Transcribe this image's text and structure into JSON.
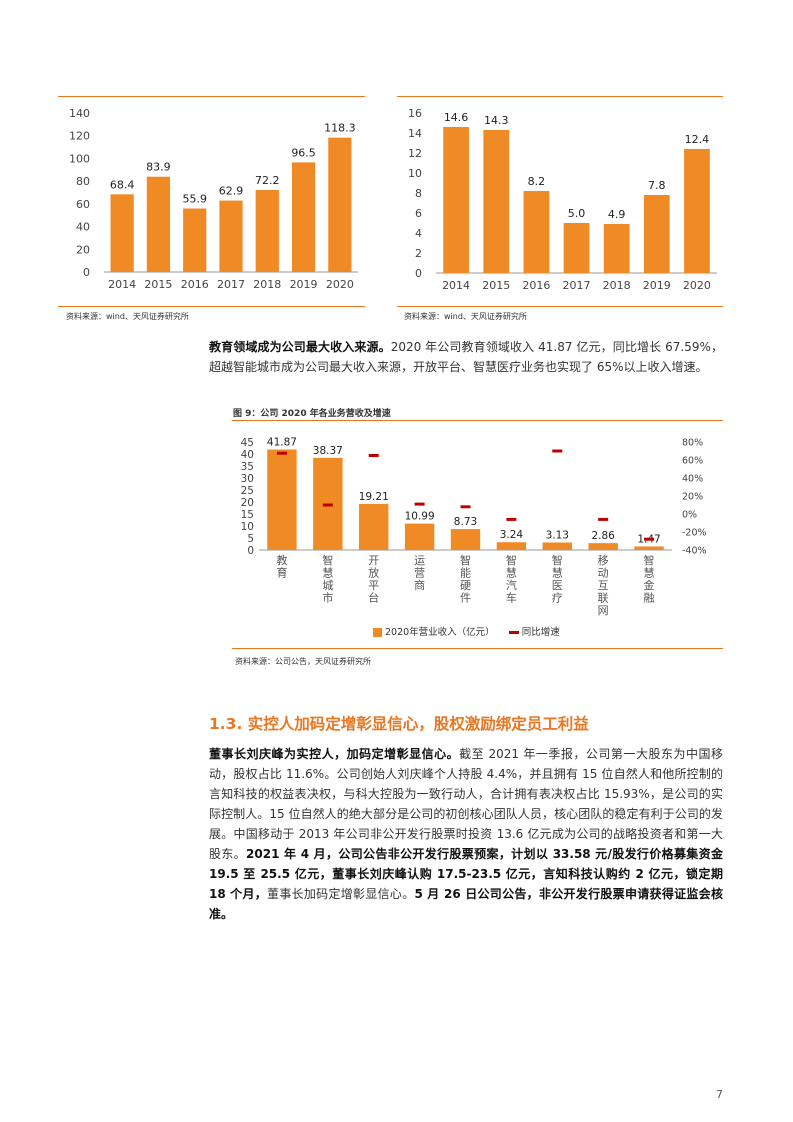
{
  "charts": {
    "left": {
      "source": "资料来源：wind、天风证券研究所"
    },
    "right": {
      "source": "资料来源：wind、天风证券研究所"
    },
    "fig9": {
      "title": "图 9：公司 2020 年各业务营收及增速",
      "legend_bar": "2020年营业收入（亿元）",
      "legend_line": "同比增速",
      "source": "资料来源：公司公告，天风证券研究所"
    }
  },
  "chart_data": [
    {
      "type": "bar",
      "categories": [
        "2014",
        "2015",
        "2016",
        "2017",
        "2018",
        "2019",
        "2020"
      ],
      "values": [
        68.4,
        83.9,
        55.9,
        62.9,
        72.2,
        96.5,
        118.3
      ],
      "value_labels": [
        "68.4",
        "83.9",
        "55.9",
        "62.9",
        "72.2",
        "96.5",
        "118.3"
      ],
      "yticks": [
        "0",
        "20",
        "40",
        "60",
        "80",
        "100",
        "120",
        "140"
      ],
      "ylim": [
        0,
        140
      ],
      "color": "#F08A24"
    },
    {
      "type": "bar",
      "categories": [
        "2014",
        "2015",
        "2016",
        "2017",
        "2018",
        "2019",
        "2020"
      ],
      "values": [
        14.6,
        14.3,
        8.2,
        5.0,
        4.9,
        7.8,
        12.4
      ],
      "value_labels": [
        "14.6",
        "14.3",
        "8.2",
        "5.0",
        "4.9",
        "7.8",
        "12.4"
      ],
      "yticks": [
        "0",
        "2",
        "4",
        "6",
        "8",
        "10",
        "12",
        "14",
        "16"
      ],
      "ylim": [
        0,
        16
      ],
      "color": "#F08A24"
    },
    {
      "type": "bar",
      "categories": [
        "教育",
        "智慧城市",
        "开放平台",
        "运营商",
        "智能硬件",
        "智慧汽车",
        "智慧医疗",
        "移动互联网",
        "智慧金融"
      ],
      "series": [
        {
          "name": "2020年营业收入（亿元）",
          "values": [
            41.87,
            38.37,
            19.21,
            10.99,
            8.73,
            3.24,
            3.13,
            2.86,
            1.47
          ],
          "value_labels": [
            "41.87",
            "38.37",
            "19.21",
            "10.99",
            "8.73",
            "3.24",
            "3.13",
            "2.86",
            "1.47"
          ],
          "axis": "left",
          "color": "#F08A24"
        },
        {
          "name": "同比增速",
          "values": [
            67.59,
            10,
            65,
            11,
            8,
            -6,
            70,
            -6,
            -28
          ],
          "axis": "right",
          "color": "#C00000"
        }
      ],
      "yticks_left": [
        "0",
        "5",
        "10",
        "15",
        "20",
        "25",
        "30",
        "35",
        "40",
        "45"
      ],
      "ylim_left": [
        0,
        45
      ],
      "yticks_right": [
        "-40%",
        "-20%",
        "0%",
        "20%",
        "40%",
        "60%",
        "80%"
      ],
      "ylim_right": [
        -40,
        80
      ]
    }
  ],
  "text": {
    "para1_bold": "教育领域成为公司最大收入来源。",
    "para1_rest": "2020 年公司教育领域收入 41.87 亿元，同比增长 67.59%，超越智能城市成为公司最大收入来源，开放平台、智慧医疗业务也实现了 65%以上收入增速。",
    "section_title": "1.3. 实控人加码定增彰显信心，股权激励绑定员工利益",
    "para2_bold1": "董事长刘庆峰为实控人，加码定增彰显信心。",
    "para2_text1": "截至 2021 年一季报，公司第一大股东为中国移动，股权占比 11.6%。公司创始人刘庆峰个人持股 4.4%，并且拥有 15 位自然人和他所控制的言知科技的权益表决权，与科大控股为一致行动人，合计拥有表决权占比 15.93%，是公司的实际控制人。15 位自然人的绝大部分是公司的初创核心团队人员，核心团队的稳定有利于公司的发展。中国移动于 2013 年公司非公开发行股票时投资 13.6 亿元成为公司的战略投资者和第一大股东。",
    "para2_bold2": "2021 年 4 月，公司公告非公开发行股票预案，计划以 33.58 元/股发行价格募集资金 19.5 至 25.5 亿元，董事长刘庆峰认购 17.5-23.5 亿元，言知科技认购约 2 亿元，锁定期 18 个月，",
    "para2_text2": "董事长加码定增彰显信心。",
    "para2_bold3": "5 月 26 日公司公告，非公开发行股票申请获得证监会核准。"
  },
  "page_number": "7"
}
